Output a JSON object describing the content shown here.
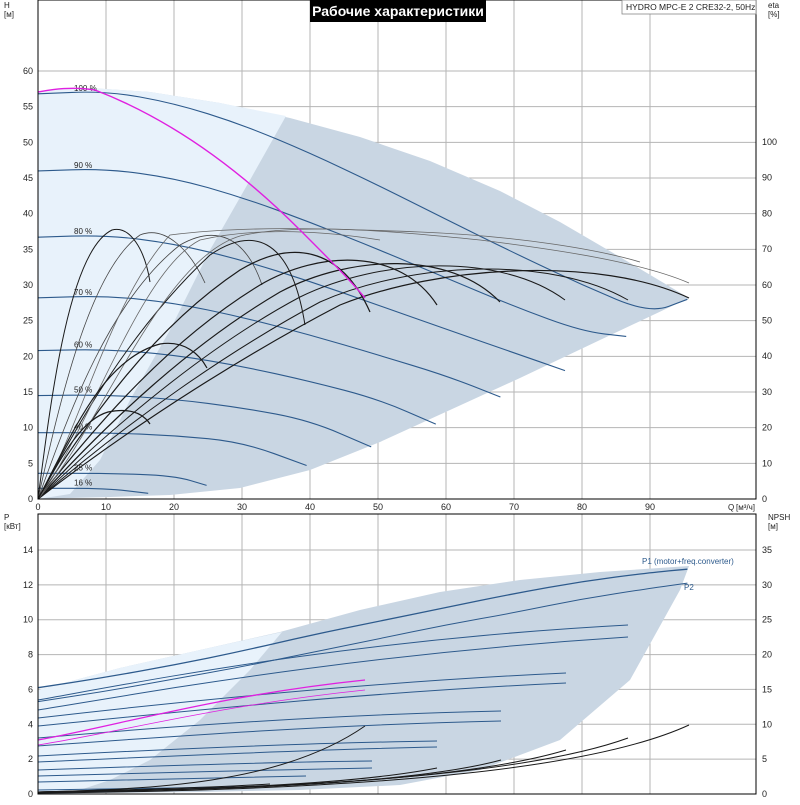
{
  "title": "Рабочие характеристики",
  "model_label": "HYDRO MPC-E 2 CRE32-2, 50Hz",
  "colors": {
    "area_fill": "#c9d6e3",
    "area_light": "#e8f2fb",
    "curve_blue": "#2d5a8c",
    "curve_black": "#1a1a1a",
    "curve_gray": "#555555",
    "highlight": "#e020e0",
    "title_bg": "#000000",
    "title_fg": "#ffffff"
  },
  "chart_data": [
    {
      "type": "line",
      "name_label": "head",
      "x_axis": {
        "label": "Q",
        "unit": "[м³/ч]",
        "min": 0,
        "max": 100,
        "ticks": [
          0,
          10,
          20,
          30,
          40,
          50,
          60,
          70,
          80,
          90
        ]
      },
      "y_axis": {
        "label": "H",
        "unit": "[м]",
        "min": 0,
        "max": 60,
        "ticks": [
          0,
          5,
          10,
          15,
          20,
          25,
          30,
          35,
          40,
          45,
          50,
          55,
          60
        ]
      },
      "y2_axis": {
        "label": "eta",
        "unit": "[%]",
        "min": 0,
        "max": 100,
        "ticks": [
          0,
          10,
          20,
          30,
          40,
          50,
          60,
          70,
          80,
          90,
          100
        ]
      },
      "speed_curves": [
        {
          "label": "100 %",
          "x": [
            0,
            10,
            20,
            30,
            40,
            50,
            60,
            70,
            80,
            90,
            95.5
          ],
          "y": [
            56.8,
            57.2,
            55.5,
            52.5,
            48.5,
            44,
            39.2,
            34.5,
            30,
            26,
            28
          ]
        },
        {
          "label": "90 %",
          "x": [
            0,
            10,
            20,
            30,
            40,
            50,
            60,
            70,
            80,
            86.5
          ],
          "y": [
            46,
            46.3,
            45,
            42.3,
            38.8,
            35,
            31,
            27,
            23.5,
            22.8
          ]
        },
        {
          "label": "80 %",
          "x": [
            0,
            10,
            20,
            30,
            40,
            50,
            60,
            70,
            77.5
          ],
          "y": [
            36.7,
            37,
            35.8,
            33.5,
            30.5,
            27.2,
            23.8,
            20.5,
            18
          ]
        },
        {
          "label": "70 %",
          "x": [
            0,
            10,
            20,
            30,
            40,
            50,
            60,
            68
          ],
          "y": [
            28.2,
            28.5,
            27.5,
            25.5,
            23,
            20.2,
            17.3,
            14.3
          ]
        },
        {
          "label": "60 %",
          "x": [
            0,
            10,
            20,
            30,
            40,
            50,
            58.5
          ],
          "y": [
            20.8,
            21,
            20.2,
            18.6,
            16.5,
            14,
            10.5
          ]
        },
        {
          "label": "50 %",
          "x": [
            0,
            10,
            20,
            30,
            40,
            49
          ],
          "y": [
            14.5,
            14.6,
            14,
            12.8,
            11,
            7.3
          ]
        },
        {
          "label": "40 %",
          "x": [
            0,
            10,
            20,
            30,
            39.5
          ],
          "y": [
            9.3,
            9.3,
            8.9,
            8,
            4.7
          ]
        },
        {
          "label": "25 %",
          "x": [
            0,
            10,
            20,
            24.8
          ],
          "y": [
            3.6,
            3.6,
            3.3,
            1.9
          ]
        },
        {
          "label": "16 %",
          "x": [
            0,
            10,
            16.2
          ],
          "y": [
            1.5,
            1.5,
            0.8
          ]
        }
      ],
      "operating_area_ylim": [
        0,
        60
      ]
    },
    {
      "type": "line",
      "name_label": "power",
      "x_axis": {
        "min": 0,
        "max": 100
      },
      "y_axis": {
        "label": "P",
        "unit": "[кВт]",
        "min": 0,
        "max": 14,
        "ticks": [
          0,
          2,
          4,
          6,
          8,
          10,
          12,
          14
        ]
      },
      "y2_axis": {
        "label": "NPSH",
        "unit": "[м]",
        "min": 0,
        "max": 35,
        "ticks": [
          0,
          5,
          10,
          15,
          20,
          25,
          30,
          35
        ]
      },
      "series": [
        {
          "name": "P1 (motor+freq.converter)",
          "x": [
            0,
            10,
            20,
            30,
            40,
            50,
            60,
            70,
            80,
            90,
            95.5
          ],
          "y": [
            6.1,
            6.7,
            7.4,
            8.2,
            9.1,
            9.9,
            10.7,
            11.5,
            12.2,
            12.7,
            12.9
          ]
        },
        {
          "name": "P2",
          "x": [
            0,
            10,
            20,
            30,
            40,
            50,
            60,
            70,
            80,
            90,
            95.5
          ],
          "y": [
            5.3,
            5.9,
            6.6,
            7.3,
            8.1,
            8.9,
            9.7,
            10.4,
            11.2,
            11.8,
            12.1
          ]
        }
      ]
    }
  ]
}
